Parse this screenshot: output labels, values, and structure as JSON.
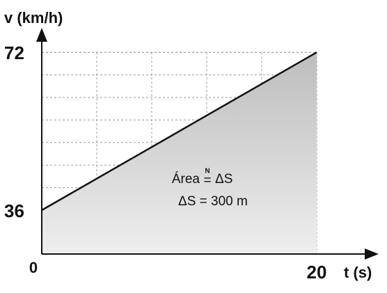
{
  "chart_data": {
    "type": "area_line",
    "y_label": "v (km/h)",
    "x_label": "t (s)",
    "x": [
      0,
      20
    ],
    "series": [
      {
        "name": "v",
        "color": "#111111",
        "values": [
          36,
          72
        ]
      }
    ],
    "xlim": [
      0,
      24
    ],
    "ylim": [
      26,
      76
    ],
    "xticks": [
      0,
      20
    ],
    "yticks": [
      36,
      72
    ],
    "grid": true,
    "area_color": "#cfcfcf",
    "annotation_area": {
      "left": "Área",
      "over": "N",
      "symbol": "=",
      "right": "ΔS"
    },
    "annotation_result": "ΔS = 300 m"
  }
}
